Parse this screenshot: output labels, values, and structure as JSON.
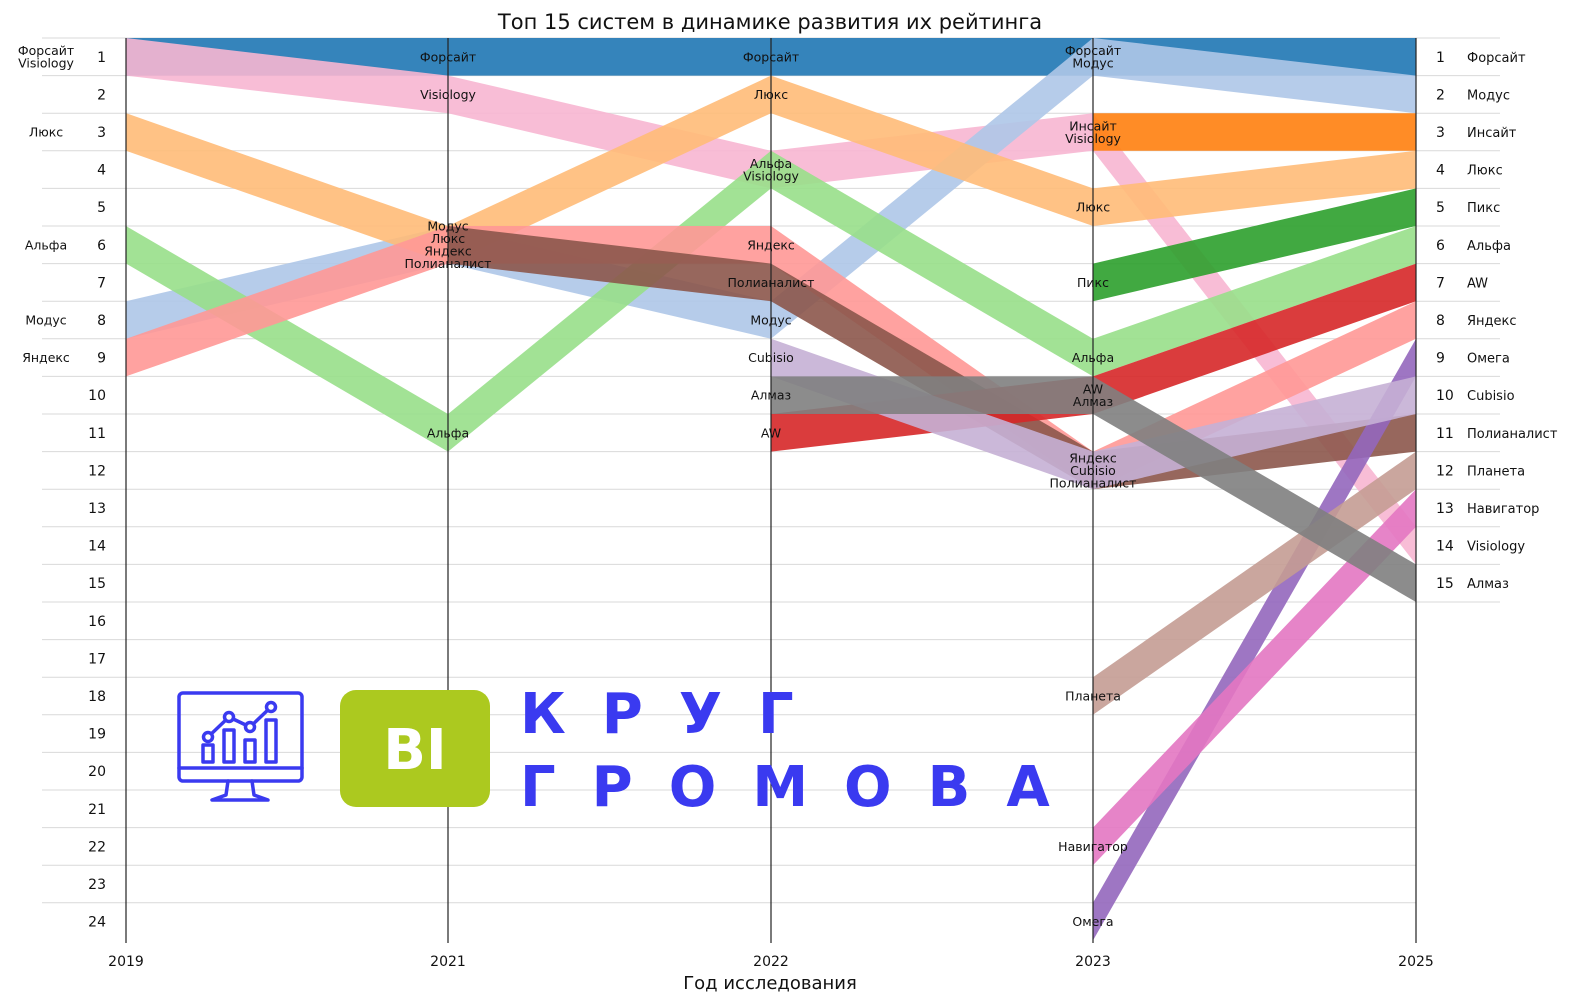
{
  "chart_data": {
    "type": "bump",
    "title": "Топ 15 систем в динамике развития их рейтинга",
    "xlabel": "Год исследования",
    "ylabel": "",
    "years": [
      "2019",
      "2021",
      "2022",
      "2023",
      "2025"
    ],
    "rank_range": [
      1,
      24
    ],
    "series": [
      {
        "name": "Форсайт",
        "color": "#1f77b4",
        "ranks": [
          1,
          1,
          1,
          1,
          1
        ]
      },
      {
        "name": "Visiology",
        "color": "#f7b6d2",
        "ranks": [
          1,
          2,
          4,
          3,
          14
        ]
      },
      {
        "name": "Модус",
        "color": "#aec7e8",
        "ranks": [
          8,
          6,
          8,
          1,
          2
        ]
      },
      {
        "name": "Люкс",
        "color": "#ffbb78",
        "ranks": [
          3,
          6,
          2,
          5,
          4
        ]
      },
      {
        "name": "Альфа",
        "color": "#98df8a",
        "ranks": [
          6,
          11,
          4,
          9,
          6
        ]
      },
      {
        "name": "Яндекс",
        "color": "#ff9896",
        "ranks": [
          9,
          6,
          6,
          12,
          8
        ]
      },
      {
        "name": "Полианалист",
        "color": "#8c564b",
        "ranks": [
          null,
          6,
          7,
          12,
          11
        ]
      },
      {
        "name": "Инсайт",
        "color": "#ff7f0e",
        "ranks": [
          null,
          null,
          null,
          3,
          3
        ]
      },
      {
        "name": "Пикс",
        "color": "#2ca02c",
        "ranks": [
          null,
          null,
          null,
          7,
          5
        ]
      },
      {
        "name": "AW",
        "color": "#d62728",
        "ranks": [
          null,
          null,
          11,
          10,
          7
        ]
      },
      {
        "name": "Омега",
        "color": "#9467bd",
        "ranks": [
          null,
          null,
          null,
          24,
          9
        ]
      },
      {
        "name": "Cubisio",
        "color": "#c5b0d5",
        "ranks": [
          null,
          null,
          9,
          12,
          10
        ]
      },
      {
        "name": "Планета",
        "color": "#c49c94",
        "ranks": [
          null,
          null,
          null,
          18,
          12
        ]
      },
      {
        "name": "Навигатор",
        "color": "#e377c2",
        "ranks": [
          null,
          null,
          null,
          22,
          13
        ]
      },
      {
        "name": "Алмаз",
        "color": "#7f7f7f",
        "ranks": [
          null,
          null,
          10,
          10,
          15
        ]
      }
    ],
    "point_labels": {
      "2019": [
        {
          "rank": 1,
          "lines": [
            "Форсайт",
            "Visiology"
          ]
        },
        {
          "rank": 3,
          "lines": [
            "Люкс"
          ]
        },
        {
          "rank": 6,
          "lines": [
            "Альфа"
          ]
        },
        {
          "rank": 8,
          "lines": [
            "Модус"
          ]
        },
        {
          "rank": 9,
          "lines": [
            "Яндекс"
          ]
        }
      ],
      "2021": [
        {
          "rank": 1,
          "lines": [
            "Форсайт"
          ]
        },
        {
          "rank": 2,
          "lines": [
            "Visiology"
          ]
        },
        {
          "rank": 6,
          "lines": [
            "Модус",
            "Люкс",
            "Яндекс",
            "Полианалист"
          ]
        },
        {
          "rank": 11,
          "lines": [
            "Альфа"
          ]
        }
      ],
      "2022": [
        {
          "rank": 1,
          "lines": [
            "Форсайт"
          ]
        },
        {
          "rank": 2,
          "lines": [
            "Люкс"
          ]
        },
        {
          "rank": 4,
          "lines": [
            "Альфа",
            "Visiology"
          ]
        },
        {
          "rank": 6,
          "lines": [
            "Яндекс"
          ]
        },
        {
          "rank": 7,
          "lines": [
            "Полианалист"
          ]
        },
        {
          "rank": 8,
          "lines": [
            "Модус"
          ]
        },
        {
          "rank": 9,
          "lines": [
            "Cubisio"
          ]
        },
        {
          "rank": 10,
          "lines": [
            "Алмаз"
          ]
        },
        {
          "rank": 11,
          "lines": [
            "AW"
          ]
        }
      ],
      "2023": [
        {
          "rank": 1,
          "lines": [
            "Форсайт",
            "Модус"
          ]
        },
        {
          "rank": 3,
          "lines": [
            "Инсайт",
            "Visiology"
          ]
        },
        {
          "rank": 5,
          "lines": [
            "Люкс"
          ]
        },
        {
          "rank": 7,
          "lines": [
            "Пикс"
          ]
        },
        {
          "rank": 9,
          "lines": [
            "Альфа"
          ]
        },
        {
          "rank": 10,
          "lines": [
            "AW",
            "Алмаз"
          ]
        },
        {
          "rank": 12,
          "lines": [
            "Яндекс",
            "Cubisio",
            "Полианалист"
          ]
        },
        {
          "rank": 18,
          "lines": [
            "Планета"
          ]
        },
        {
          "rank": 22,
          "lines": [
            "Навигатор"
          ]
        },
        {
          "rank": 24,
          "lines": [
            "Омега"
          ]
        }
      ]
    },
    "final_ranking": [
      "Форсайт",
      "Модус",
      "Инсайт",
      "Люкс",
      "Пикс",
      "Альфа",
      "AW",
      "Яндекс",
      "Омега",
      "Cubisio",
      "Полианалист",
      "Планета",
      "Навигатор",
      "Visiology",
      "Алмаз"
    ],
    "grid": true,
    "legend": "none"
  },
  "logo": {
    "badge_text": "BI",
    "line1": "КРУГ",
    "line2": "ГРОМОВА",
    "icon": "monitor-chart-icon",
    "badge_color": "#acc91f",
    "text_color": "#3a3af0"
  }
}
